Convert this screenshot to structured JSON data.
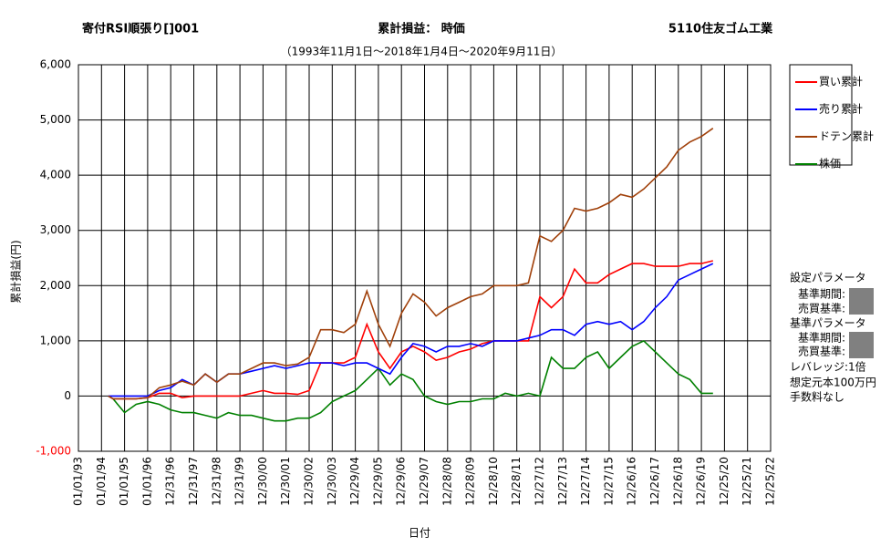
{
  "chart_data": {
    "type": "line",
    "title": "寄付RSI順張り[]001",
    "subtitle_center": "累計損益： 時価",
    "title_right": "5110住友ゴム工業",
    "subtitle": "（1993年11月1日～2018年1月4日～2020年9月11日）",
    "y_label": "累計損益(円)",
    "x_label": "日付",
    "grid": true,
    "legend_position": "right",
    "negative_tick_color": "#ff0000",
    "xlim": [
      1993,
      2023
    ],
    "xticks": [
      {
        "value": 1993,
        "label": "01/01/93"
      },
      {
        "value": 1994,
        "label": "01/01/94"
      },
      {
        "value": 1995,
        "label": "01/01/95"
      },
      {
        "value": 1996,
        "label": "01/01/96"
      },
      {
        "value": 1997,
        "label": "12/31/96"
      },
      {
        "value": 1998,
        "label": "12/31/97"
      },
      {
        "value": 1999,
        "label": "12/31/98"
      },
      {
        "value": 2000,
        "label": "12/31/99"
      },
      {
        "value": 2001,
        "label": "12/30/00"
      },
      {
        "value": 2002,
        "label": "12/30/01"
      },
      {
        "value": 2003,
        "label": "12/30/02"
      },
      {
        "value": 2004,
        "label": "12/30/03"
      },
      {
        "value": 2005,
        "label": "12/29/04"
      },
      {
        "value": 2006,
        "label": "12/29/05"
      },
      {
        "value": 2007,
        "label": "12/29/06"
      },
      {
        "value": 2008,
        "label": "12/29/07"
      },
      {
        "value": 2009,
        "label": "12/28/08"
      },
      {
        "value": 2010,
        "label": "12/28/09"
      },
      {
        "value": 2011,
        "label": "12/28/10"
      },
      {
        "value": 2012,
        "label": "12/28/11"
      },
      {
        "value": 2013,
        "label": "12/27/12"
      },
      {
        "value": 2014,
        "label": "12/27/13"
      },
      {
        "value": 2015,
        "label": "12/27/14"
      },
      {
        "value": 2016,
        "label": "12/27/15"
      },
      {
        "value": 2017,
        "label": "12/26/16"
      },
      {
        "value": 2018,
        "label": "12/26/17"
      },
      {
        "value": 2019,
        "label": "12/26/18"
      },
      {
        "value": 2020,
        "label": "12/26/19"
      },
      {
        "value": 2021,
        "label": "12/25/20"
      },
      {
        "value": 2022,
        "label": "12/25/21"
      },
      {
        "value": 2023,
        "label": "12/25/22"
      }
    ],
    "ylim": [
      -1000,
      6000
    ],
    "yticks": [
      {
        "value": -1000,
        "label": "-1,000"
      },
      0,
      {
        "value": 1000,
        "label": "1,000"
      },
      {
        "value": 2000,
        "label": "2,000"
      },
      {
        "value": 3000,
        "label": "3,000"
      },
      {
        "value": 4000,
        "label": "4,000"
      },
      {
        "value": 5000,
        "label": "5,000"
      },
      {
        "value": 6000,
        "label": "6,000"
      }
    ],
    "x": [
      1994.3,
      1994.5,
      1995,
      1995.5,
      1996,
      1996.5,
      1997,
      1997.5,
      1998,
      1998.5,
      1999,
      1999.5,
      2000,
      2000.5,
      2001,
      2001.5,
      2002,
      2002.5,
      2003,
      2003.5,
      2004,
      2004.5,
      2005,
      2005.5,
      2006,
      2006.5,
      2007,
      2007.5,
      2008,
      2008.5,
      2009,
      2009.5,
      2010,
      2010.5,
      2011,
      2011.5,
      2012,
      2012.5,
      2013,
      2013.5,
      2014,
      2014.5,
      2015,
      2015.5,
      2016,
      2016.5,
      2017,
      2017.5,
      2018,
      2018.5,
      2019,
      2019.5,
      2020,
      2020.5
    ],
    "series": [
      {
        "name": "買い累計",
        "color": "#ff0000",
        "values": [
          0,
          -50,
          -50,
          -50,
          -30,
          50,
          50,
          -30,
          0,
          0,
          0,
          0,
          0,
          50,
          100,
          50,
          50,
          30,
          100,
          600,
          600,
          600,
          700,
          1300,
          800,
          500,
          800,
          900,
          800,
          650,
          700,
          800,
          850,
          950,
          1000,
          1000,
          1000,
          1000,
          1800,
          1600,
          1800,
          2300,
          2050,
          2050,
          2200,
          2300,
          2400,
          2400,
          2350,
          2350,
          2350,
          2400,
          2400,
          2450
        ]
      },
      {
        "name": "売り累計",
        "color": "#0000ff",
        "values": [
          0,
          0,
          0,
          0,
          0,
          100,
          150,
          300,
          200,
          400,
          250,
          400,
          400,
          450,
          500,
          550,
          500,
          550,
          600,
          600,
          600,
          550,
          600,
          600,
          500,
          400,
          700,
          950,
          900,
          800,
          900,
          900,
          950,
          900,
          1000,
          1000,
          1000,
          1050,
          1100,
          1200,
          1200,
          1100,
          1300,
          1350,
          1300,
          1350,
          1200,
          1350,
          1600,
          1800,
          2100,
          2200,
          2300,
          2400
        ]
      },
      {
        "name": "ドテン累計",
        "color": "#a0400a",
        "values": [
          0,
          -50,
          -50,
          -50,
          -30,
          150,
          200,
          270,
          200,
          400,
          250,
          400,
          400,
          500,
          600,
          600,
          550,
          580,
          700,
          1200,
          1200,
          1150,
          1300,
          1900,
          1300,
          900,
          1500,
          1850,
          1700,
          1450,
          1600,
          1700,
          1800,
          1850,
          2000,
          2000,
          2000,
          2050,
          2900,
          2800,
          3000,
          3400,
          3350,
          3400,
          3500,
          3650,
          3600,
          3750,
          3950,
          4150,
          4450,
          4600,
          4700,
          4850
        ]
      },
      {
        "name": "株価",
        "color": "#008000",
        "values": [
          0,
          -50,
          -300,
          -150,
          -100,
          -150,
          -250,
          -300,
          -300,
          -350,
          -400,
          -300,
          -350,
          -350,
          -400,
          -450,
          -450,
          -400,
          -400,
          -300,
          -100,
          0,
          100,
          300,
          500,
          200,
          400,
          300,
          0,
          -100,
          -150,
          -100,
          -100,
          -50,
          -50,
          50,
          0,
          50,
          0,
          700,
          500,
          500,
          700,
          800,
          500,
          700,
          900,
          1000,
          800,
          600,
          400,
          300,
          50,
          50
        ]
      }
    ],
    "annotations": [
      "設定パラメータ",
      "基準期間:",
      "売買基準:",
      "基準パラメータ",
      "基準期間:",
      "売買基準:",
      "レバレッジ:1倍",
      "想定元本100万円",
      "手数料なし"
    ]
  }
}
